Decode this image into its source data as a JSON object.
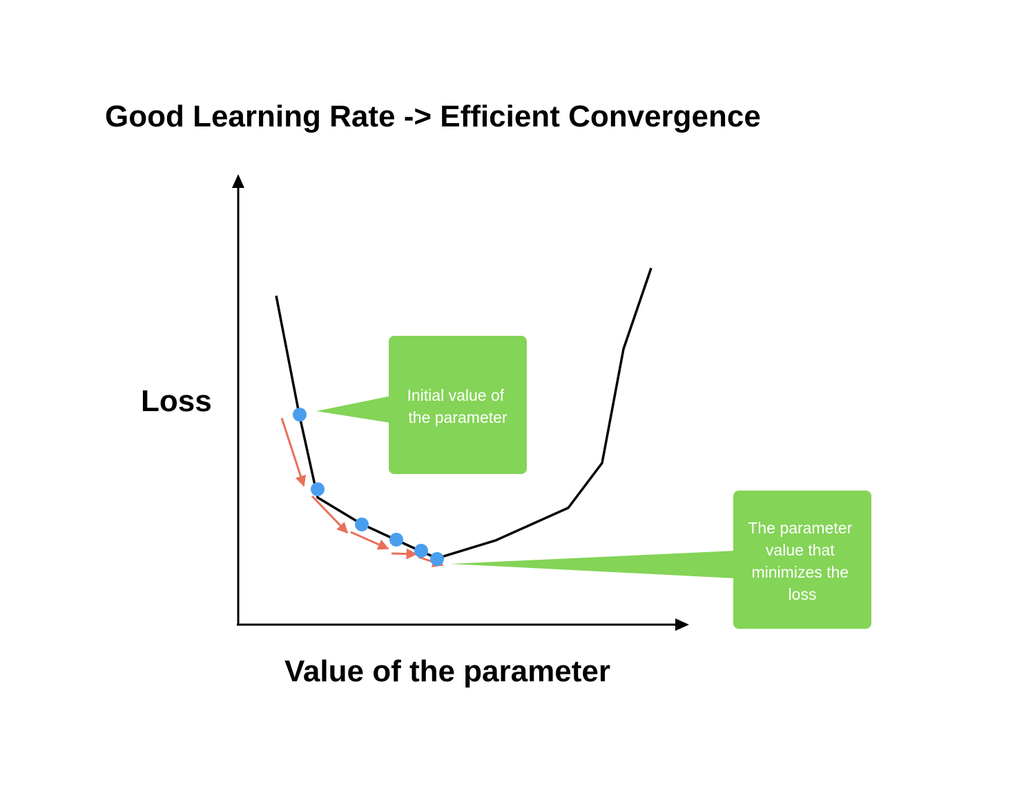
{
  "title": "Good Learning Rate -> Efficient Convergence",
  "axes": {
    "y_label": "Loss",
    "x_label": "Value of the parameter"
  },
  "callouts": {
    "initial": {
      "lines": [
        "Initial value of",
        "the parameter"
      ]
    },
    "minimum": {
      "lines": [
        "The parameter",
        "value that",
        "minimizes the",
        "loss"
      ]
    }
  },
  "colors": {
    "curve": "#000000",
    "point": "#4a9eee",
    "step_arrow": "#e8705c",
    "callout_bg": "#84d457",
    "callout_text": "#ffffff"
  }
}
